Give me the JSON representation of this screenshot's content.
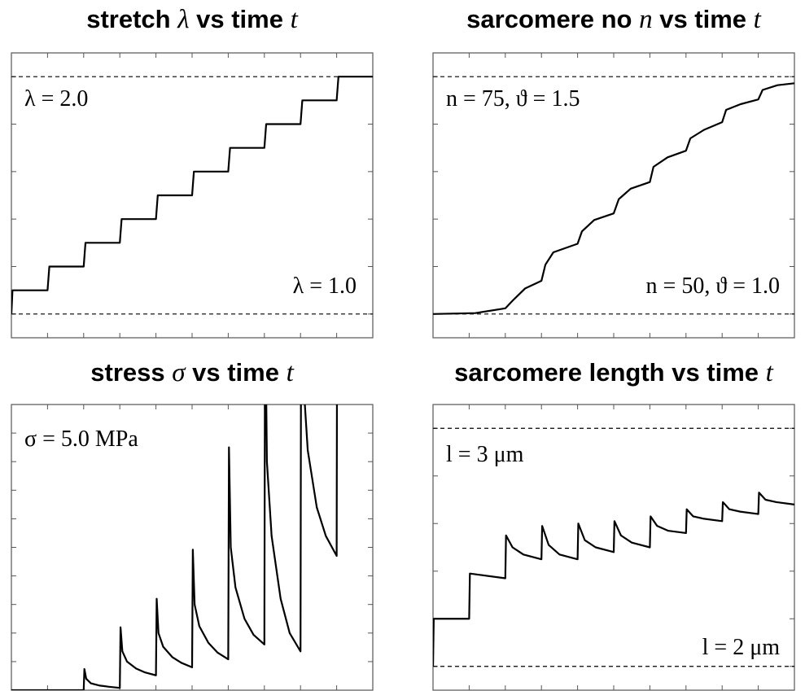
{
  "chart_data": [
    {
      "type": "line",
      "title_parts": [
        "stretch ",
        "λ",
        " vs time ",
        "t"
      ],
      "x": [
        0,
        0.03,
        1,
        1.05,
        2,
        2.05,
        3,
        3.05,
        4,
        4.05,
        5,
        5.05,
        6,
        6.05,
        7,
        7.05,
        8,
        8.05,
        9,
        9.05,
        10
      ],
      "values": [
        1.0,
        1.1,
        1.1,
        1.2,
        1.2,
        1.3,
        1.3,
        1.4,
        1.4,
        1.5,
        1.5,
        1.6,
        1.6,
        1.7,
        1.7,
        1.8,
        1.8,
        1.9,
        1.9,
        2.0,
        2.0
      ],
      "color": "#000000",
      "xlim": [
        0,
        10
      ],
      "ylim": [
        0.9,
        2.1
      ],
      "xticks": [
        0,
        1,
        2,
        3,
        4,
        5,
        6,
        7,
        8,
        9,
        10
      ],
      "yticks": [
        1.0,
        1.2,
        1.4,
        1.6,
        1.8,
        2.0
      ],
      "hlines": [
        1.0,
        2.0
      ],
      "annotations": [
        "λ = 2.0",
        "λ = 1.0"
      ]
    },
    {
      "type": "line",
      "title_parts": [
        "sarcomere no ",
        "n",
        " vs time ",
        "t"
      ],
      "x": [
        0,
        1.17,
        2,
        2.2,
        2.55,
        3,
        3.11,
        3.33,
        4,
        4.12,
        4.46,
        5,
        5.14,
        5.47,
        6,
        6.1,
        6.49,
        7,
        7.12,
        7.5,
        8,
        8.11,
        8.51,
        9,
        9.12,
        9.53,
        10
      ],
      "values": [
        50,
        50.1,
        50.6,
        51.4,
        52.7,
        53.5,
        55.2,
        56.5,
        57.4,
        58.7,
        59.9,
        60.6,
        62.1,
        63.2,
        63.9,
        65.5,
        66.5,
        67.2,
        68.5,
        69.4,
        70.2,
        71.5,
        72.1,
        72.6,
        73.6,
        74.1,
        74.3
      ],
      "color": "#000000",
      "xlim": [
        0,
        10
      ],
      "ylim": [
        47.5,
        77.5
      ],
      "xticks": [
        0,
        1,
        2,
        3,
        4,
        5,
        6,
        7,
        8,
        9,
        10
      ],
      "yticks": [
        50,
        55,
        60,
        65,
        70,
        75
      ],
      "hlines": [
        50,
        75
      ],
      "annotations": [
        "n = 75, ϑ = 1.5",
        "n = 50, ϑ = 1.0"
      ]
    },
    {
      "type": "line",
      "title_parts": [
        "stress ",
        "σ",
        " vs time ",
        "t"
      ],
      "x": [
        0,
        2,
        2.02,
        2.07,
        2.2,
        2.45,
        2.7,
        3,
        3.02,
        3.07,
        3.2,
        3.45,
        3.7,
        4,
        4.02,
        4.07,
        4.2,
        4.45,
        4.7,
        5,
        5.02,
        5.07,
        5.2,
        5.45,
        5.7,
        6,
        6.02,
        6.07,
        6.2,
        6.45,
        6.7,
        7,
        7.02,
        7.07,
        7.2,
        7.45,
        7.7,
        8,
        8.02,
        8.07,
        8.2,
        8.45,
        8.7,
        9,
        9.02
      ],
      "values": [
        0,
        0,
        0.37,
        0.2,
        0.12,
        0.08,
        0.06,
        0.04,
        1.1,
        0.68,
        0.5,
        0.38,
        0.31,
        0.26,
        1.6,
        1.0,
        0.76,
        0.58,
        0.48,
        0.4,
        2.46,
        1.5,
        1.12,
        0.83,
        0.66,
        0.54,
        4.25,
        2.5,
        1.8,
        1.25,
        0.97,
        0.8,
        7,
        4,
        2.7,
        1.6,
        1.0,
        0.68,
        8,
        5.5,
        4.2,
        3.2,
        2.7,
        2.35,
        9
      ],
      "color": "#000000",
      "xlim": [
        0,
        10
      ],
      "ylim": [
        0,
        5
      ],
      "xticks": [
        0,
        1,
        2,
        3,
        4,
        5,
        6,
        7,
        8,
        9,
        10
      ],
      "yticks": [
        0,
        0.5,
        1,
        1.5,
        2,
        2.5,
        3,
        3.5,
        4,
        4.5,
        5
      ],
      "hlines": [],
      "annotations": [
        "σ = 5.0 MPa"
      ]
    },
    {
      "type": "line",
      "title_parts": [
        "sarcomere length vs time ",
        "t"
      ],
      "x": [
        0,
        0.02,
        1,
        1.02,
        2,
        2.02,
        2.2,
        2.5,
        3,
        3.02,
        3.2,
        3.5,
        4,
        4.02,
        4.2,
        4.5,
        5,
        5.02,
        5.2,
        5.5,
        6,
        6.02,
        6.2,
        6.5,
        7,
        7.02,
        7.2,
        7.5,
        8,
        8.02,
        8.2,
        8.5,
        9,
        9.02,
        9.2,
        9.5,
        10
      ],
      "values": [
        2.0,
        2.2,
        2.2,
        2.39,
        2.37,
        2.55,
        2.5,
        2.47,
        2.45,
        2.59,
        2.51,
        2.47,
        2.45,
        2.6,
        2.53,
        2.5,
        2.48,
        2.61,
        2.55,
        2.52,
        2.5,
        2.63,
        2.59,
        2.57,
        2.56,
        2.66,
        2.63,
        2.62,
        2.61,
        2.69,
        2.66,
        2.65,
        2.64,
        2.73,
        2.7,
        2.69,
        2.68
      ],
      "color": "#000000",
      "xlim": [
        0,
        10
      ],
      "ylim": [
        1.9,
        3.1
      ],
      "xticks": [
        0,
        1,
        2,
        3,
        4,
        5,
        6,
        7,
        8,
        9,
        10
      ],
      "yticks": [
        2.0,
        2.2,
        2.4,
        2.6,
        2.8,
        3.0
      ],
      "hlines": [
        2,
        3
      ],
      "annotations": [
        "l = 3 μm",
        "l = 2 μm"
      ]
    }
  ]
}
